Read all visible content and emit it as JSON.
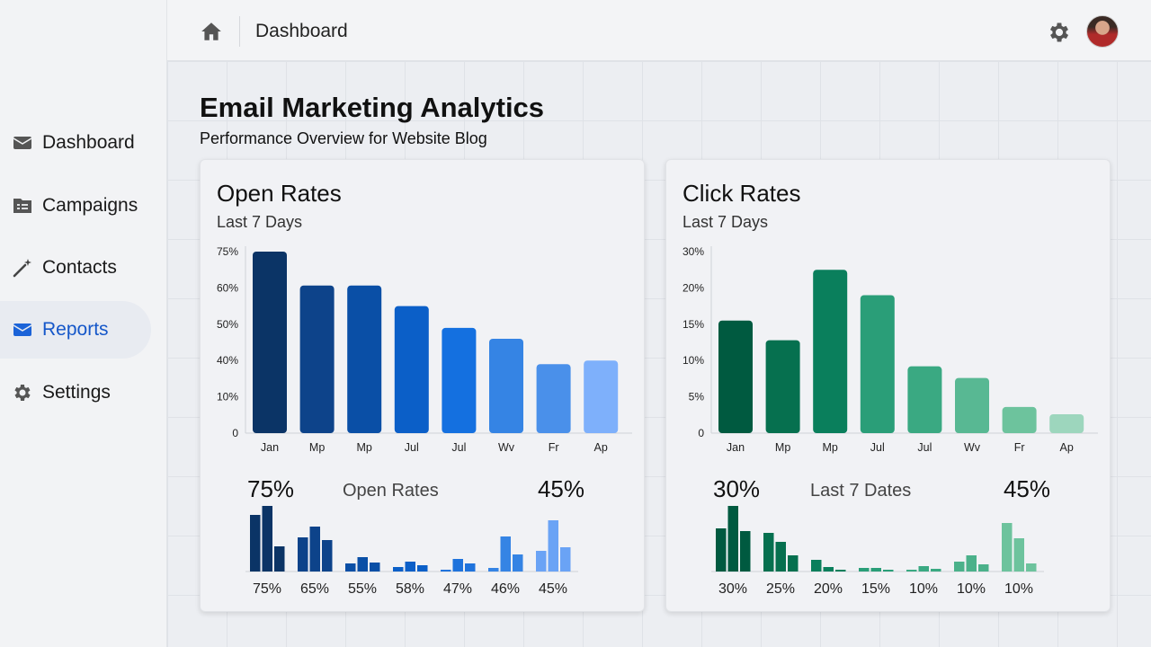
{
  "header": {
    "title": "Dashboard",
    "icons": [
      "home-icon",
      "gear-icon",
      "avatar"
    ]
  },
  "sidebar": {
    "items": [
      {
        "label": "Dashboard",
        "icon": "envelope-icon",
        "active": false
      },
      {
        "label": "Campaigns",
        "icon": "folder-list-icon",
        "active": false
      },
      {
        "label": "Contacts",
        "icon": "magic-wand-icon",
        "active": false
      },
      {
        "label": "Reports",
        "icon": "envelope-icon",
        "active": true
      },
      {
        "label": "Settings",
        "icon": "gear-icon",
        "active": false
      }
    ]
  },
  "page": {
    "title": "Email Marketing Analytics",
    "subtitle": "Performance Overview for Website Blog"
  },
  "chart_data": [
    {
      "type": "bar",
      "title": "Open Rates",
      "subtitle": "Last 7 Days",
      "categories": [
        "Jan",
        "Mp",
        "Mp",
        "Jul",
        "Jul",
        "Wv",
        "Fr",
        "Ap"
      ],
      "yticks": [
        "0",
        "10%",
        "40%",
        "50%",
        "60%",
        "75%"
      ],
      "ytick_values": [
        0,
        10,
        40,
        50,
        60,
        75
      ],
      "values": [
        75,
        61,
        61,
        55,
        49,
        46,
        37,
        40
      ],
      "colors": [
        "#0b3466",
        "#0d438a",
        "#0a4fa6",
        "#0b5fc8",
        "#1470e0",
        "#3584e4",
        "#4a90ea",
        "#7eb0fb"
      ],
      "summary": {
        "left": "75%",
        "center": "Open Rates",
        "right": "45%"
      },
      "mini": {
        "groups": [
          [
            63,
            73,
            28
          ],
          [
            38,
            50,
            35
          ],
          [
            9,
            16,
            10
          ],
          [
            5,
            11,
            7
          ],
          [
            2,
            14,
            9
          ],
          [
            4,
            39,
            19
          ],
          [
            23,
            57,
            27
          ]
        ],
        "labels": [
          "75%",
          "65%",
          "55%",
          "58%",
          "47%",
          "46%",
          "45%"
        ],
        "colors": [
          "#0b3466",
          "#0d438a",
          "#0a4fa6",
          "#0b5fc8",
          "#1f73dc",
          "#3584e4",
          "#6aa3f5"
        ]
      }
    },
    {
      "type": "bar",
      "title": "Click Rates",
      "subtitle": "Last 7 Days",
      "categories": [
        "Jan",
        "Mp",
        "Mp",
        "Jul",
        "Jul",
        "Wv",
        "Fr",
        "Ap"
      ],
      "yticks": [
        "0",
        "5%",
        "10%",
        "15%",
        "20%",
        "30%"
      ],
      "ytick_values": [
        0,
        5,
        10,
        15,
        20,
        30
      ],
      "values": [
        15.5,
        12.8,
        25,
        19,
        9.2,
        7.6,
        3.6,
        2.6
      ],
      "colors": [
        "#005a40",
        "#06704f",
        "#0a7f5c",
        "#2a9e78",
        "#3aa982",
        "#58b893",
        "#6dc39d",
        "#9dd6bd"
      ],
      "summary": {
        "left": "30%",
        "center": "Last 7 Dates",
        "right": "45%"
      },
      "mini": {
        "groups": [
          [
            48,
            73,
            45
          ],
          [
            43,
            33,
            18
          ],
          [
            13,
            5,
            2
          ],
          [
            4,
            4,
            2
          ],
          [
            2,
            6,
            3
          ],
          [
            11,
            18,
            8
          ],
          [
            54,
            37,
            9
          ]
        ],
        "labels": [
          "30%",
          "25%",
          "20%",
          "15%",
          "10%",
          "10%",
          "10%"
        ],
        "colors": [
          "#005a40",
          "#06704f",
          "#0a7f5c",
          "#2a9e78",
          "#3aa982",
          "#4bb18a",
          "#6dc39d"
        ]
      }
    }
  ]
}
